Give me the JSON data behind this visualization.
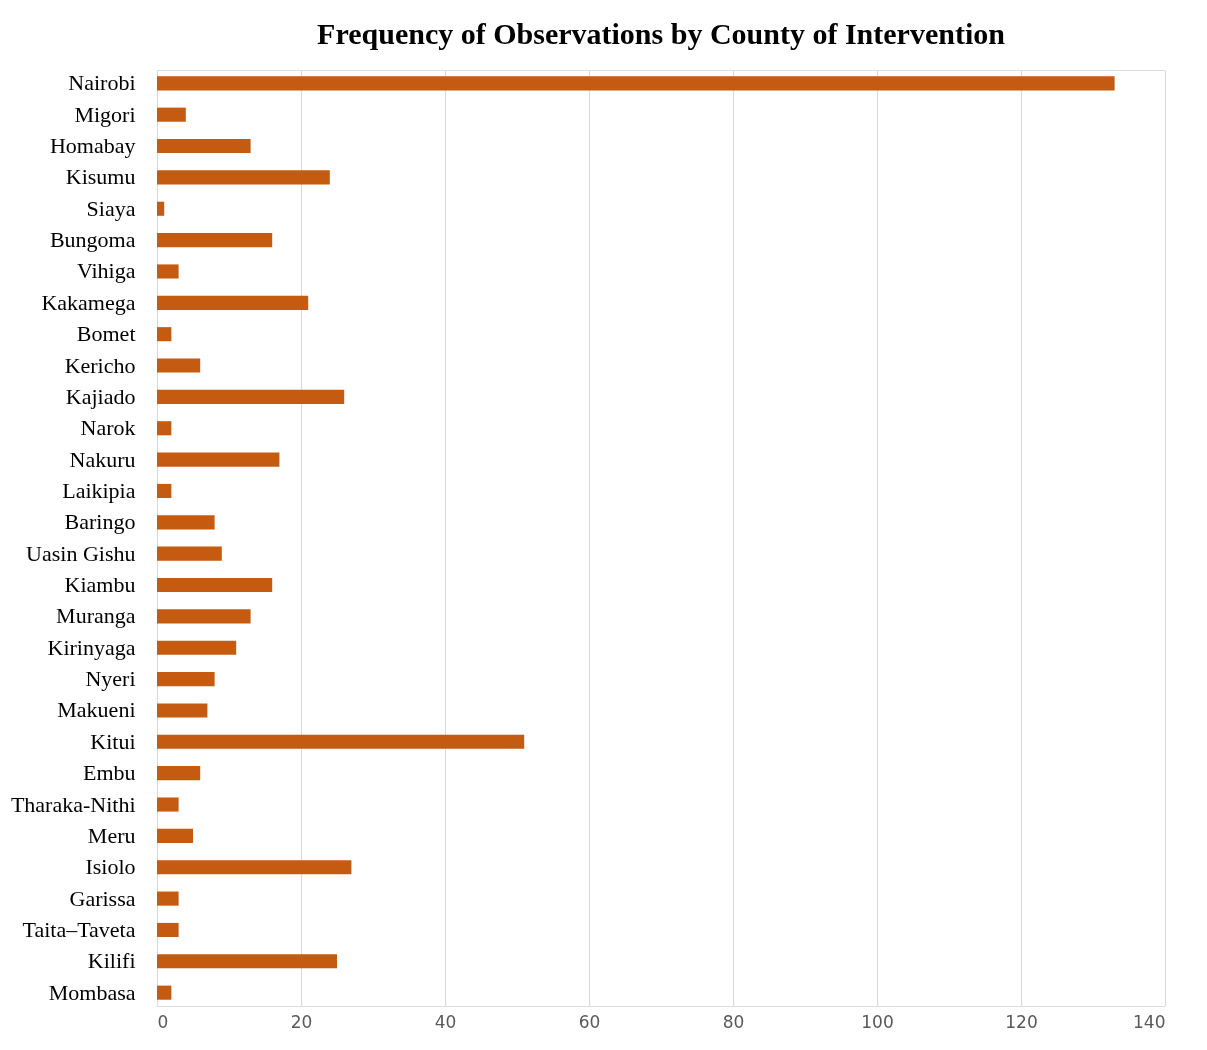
{
  "chart_data": {
    "type": "bar",
    "orientation": "horizontal",
    "title": "Frequency of Observations by County of Intervention",
    "categories": [
      "Nairobi",
      "Migori",
      "Homabay",
      "Kisumu",
      "Siaya",
      "Bungoma",
      "Vihiga",
      "Kakamega",
      "Bomet",
      "Kericho",
      "Kajiado",
      "Narok",
      "Nakuru",
      "Laikipia",
      "Baringo",
      "Uasin Gishu",
      "Kiambu",
      "Muranga",
      "Kirinyaga",
      "Nyeri",
      "Makueni",
      "Kitui",
      "Embu",
      "Tharaka-Nithi",
      "Meru",
      "Isiolo",
      "Garissa",
      "Taita–Taveta",
      "Kilifi",
      "Mombasa"
    ],
    "values": [
      133,
      4,
      13,
      24,
      1,
      16,
      3,
      21,
      2,
      6,
      26,
      2,
      17,
      2,
      8,
      9,
      16,
      13,
      11,
      8,
      7,
      51,
      6,
      3,
      5,
      27,
      3,
      3,
      25,
      2
    ],
    "color": "#c55a11",
    "xlim": [
      0,
      140
    ],
    "xticks": [
      0,
      20,
      40,
      60,
      80,
      100,
      120,
      140
    ],
    "grid": "x"
  }
}
